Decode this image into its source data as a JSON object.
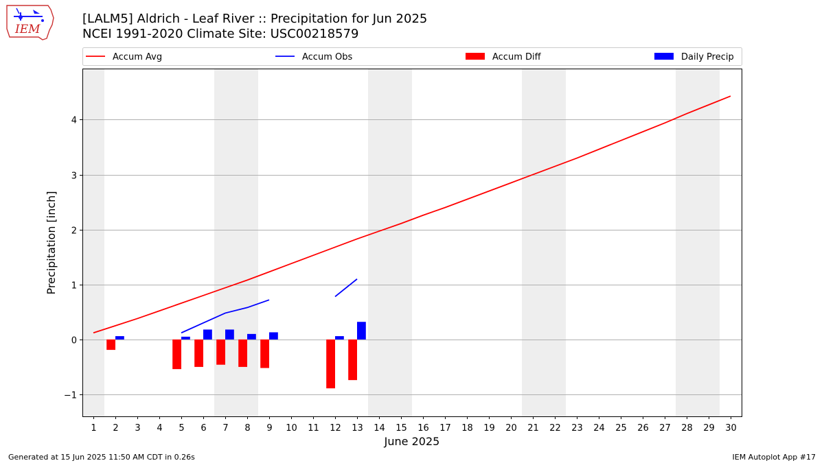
{
  "header": {
    "logo_text": "IEM",
    "title": "[LALM5] Aldrich - Leaf River :: Precipitation for Jun 2025",
    "subtitle": "NCEI 1991-2020 Climate Site: USC00218579"
  },
  "footer": {
    "generated": "Generated at 15 Jun 2025 11:50 AM CDT in 0.26s",
    "app": "IEM Autoplot App #17"
  },
  "colors": {
    "accum_avg": "#ff0000",
    "accum_obs": "#0000ff",
    "accum_diff": "#ff0000",
    "daily_precip": "#0000ff",
    "weekend_shade": "#eeeeee",
    "grid": "#b0b0b0"
  },
  "chart_data": {
    "type": "bar",
    "title": "[LALM5] Aldrich - Leaf River :: Precipitation for Jun 2025",
    "subtitle": "NCEI 1991-2020 Climate Site: USC00218579",
    "xlabel": "June 2025",
    "ylabel": "Precipitation [inch]",
    "x": [
      1,
      2,
      3,
      4,
      5,
      6,
      7,
      8,
      9,
      10,
      11,
      12,
      13,
      14,
      15,
      16,
      17,
      18,
      19,
      20,
      21,
      22,
      23,
      24,
      25,
      26,
      27,
      28,
      29,
      30
    ],
    "xlim": [
      0.5,
      30.5
    ],
    "ylim": [
      -1.4,
      4.93
    ],
    "yticks": [
      -1,
      0,
      1,
      2,
      3,
      4
    ],
    "yticklabels": [
      "−1",
      "0",
      "1",
      "2",
      "3",
      "4"
    ],
    "grid": "horizontal",
    "legend_position": "top",
    "weekend_shading": [
      [
        0.5,
        1.5
      ],
      [
        6.5,
        8.5
      ],
      [
        13.5,
        15.5
      ],
      [
        20.5,
        22.5
      ],
      [
        27.5,
        29.5
      ]
    ],
    "series": [
      {
        "name": "Accum Avg",
        "type": "line",
        "color": "#ff0000",
        "x": [
          1,
          2,
          3,
          4,
          5,
          6,
          7,
          8,
          9,
          10,
          11,
          12,
          13,
          14,
          15,
          16,
          17,
          18,
          19,
          20,
          21,
          22,
          23,
          24,
          25,
          26,
          27,
          28,
          29,
          30
        ],
        "values": [
          0.12,
          0.25,
          0.38,
          0.52,
          0.66,
          0.8,
          0.94,
          1.08,
          1.23,
          1.38,
          1.53,
          1.68,
          1.83,
          1.97,
          2.11,
          2.26,
          2.4,
          2.55,
          2.7,
          2.85,
          3.0,
          3.15,
          3.3,
          3.46,
          3.62,
          3.78,
          3.94,
          4.11,
          4.27,
          4.43
        ]
      },
      {
        "name": "Accum Obs",
        "type": "line",
        "color": "#0000ff",
        "segments": [
          {
            "x": [
              5,
              6,
              7,
              8,
              9
            ],
            "values": [
              0.12,
              0.3,
              0.48,
              0.58,
              0.72
            ]
          },
          {
            "x": [
              12,
              13
            ],
            "values": [
              0.78,
              1.1
            ]
          }
        ]
      },
      {
        "name": "Accum Diff",
        "type": "bar",
        "color": "#ff0000",
        "x": [
          2,
          5,
          6,
          7,
          8,
          9,
          12,
          13
        ],
        "values": [
          -0.19,
          -0.54,
          -0.5,
          -0.46,
          -0.5,
          -0.52,
          -0.89,
          -0.74
        ]
      },
      {
        "name": "Daily Precip",
        "type": "bar",
        "color": "#0000ff",
        "x": [
          2,
          5,
          6,
          7,
          8,
          9,
          12,
          13
        ],
        "values": [
          0.06,
          0.05,
          0.18,
          0.18,
          0.1,
          0.13,
          0.06,
          0.32
        ]
      }
    ]
  }
}
